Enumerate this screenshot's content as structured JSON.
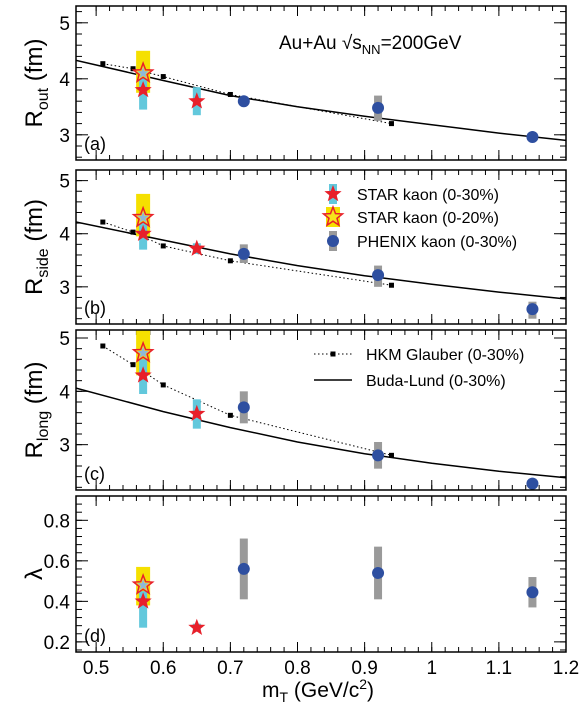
{
  "chart_data": {
    "type": "scatter",
    "x_axis": {
      "label_main": "m",
      "label_sub": "T",
      "label_unit": " (GeV/c",
      "label_sup": "2",
      "label_close": ")",
      "range": [
        0.47,
        1.2
      ],
      "ticks": [
        0.5,
        0.6,
        0.7,
        0.8,
        0.9,
        1.0,
        1.1,
        1.2
      ],
      "tick_labels": [
        "0.5",
        "0.6",
        "0.7",
        "0.8",
        "0.9",
        "1",
        "1.1",
        "1.2"
      ]
    },
    "header": {
      "system": "Au+Au",
      "energy_sqrt": "√s",
      "energy_sub": "NN",
      "energy_value": "=200GeV"
    },
    "legend_markers": [
      {
        "name": "STAR kaon (0-30%)",
        "marker": "red-star"
      },
      {
        "name": "STAR kaon (0-20%)",
        "marker": "yellow-star"
      },
      {
        "name": "PHENIX kaon (0-30%)",
        "marker": "blue-circle"
      }
    ],
    "legend_lines": [
      {
        "name": "HKM Glauber (0-30%)",
        "style": "dotted-square"
      },
      {
        "name": "Buda-Lund (0-30%)",
        "style": "solid"
      }
    ],
    "panels": [
      {
        "id": "a",
        "tag": "(a)",
        "ylabel_main": "R",
        "ylabel_sub": "out",
        "ylabel_unit": " (fm)",
        "ylim": [
          2.55,
          5.3
        ],
        "yticks": [
          3,
          4,
          5
        ],
        "star_0_30": [
          {
            "x": 0.57,
            "y": 3.8,
            "syst": [
              3.45,
              4.05
            ]
          },
          {
            "x": 0.65,
            "y": 3.6,
            "syst": [
              3.35,
              3.85
            ]
          }
        ],
        "star_0_20": [
          {
            "x": 0.57,
            "y": 4.1,
            "syst": [
              3.75,
              4.5
            ]
          }
        ],
        "phenix": [
          {
            "x": 0.72,
            "y": 3.6,
            "syst": [
              3.52,
              3.68
            ]
          },
          {
            "x": 0.92,
            "y": 3.48,
            "syst": [
              3.25,
              3.7
            ]
          },
          {
            "x": 1.15,
            "y": 2.96,
            "syst": [
              2.9,
              3.02
            ]
          }
        ],
        "hkm": {
          "x": [
            0.51,
            0.555,
            0.6,
            0.7,
            0.94
          ],
          "y": [
            4.27,
            4.18,
            4.04,
            3.72,
            3.2
          ]
        },
        "buda": {
          "x": [
            0.47,
            0.6,
            0.7,
            0.8,
            0.9,
            1.0,
            1.1,
            1.2
          ],
          "y": [
            4.33,
            3.97,
            3.7,
            3.5,
            3.33,
            3.18,
            3.03,
            2.9
          ]
        }
      },
      {
        "id": "b",
        "tag": "(b)",
        "ylabel_main": "R",
        "ylabel_sub": "side",
        "ylabel_unit": " (fm)",
        "ylim": [
          2.3,
          5.2
        ],
        "yticks": [
          3,
          4,
          5
        ],
        "star_0_30": [
          {
            "x": 0.57,
            "y": 4.0,
            "syst": [
              3.7,
              4.3
            ]
          },
          {
            "x": 0.65,
            "y": 3.72,
            "syst": [
              3.62,
              3.82
            ]
          }
        ],
        "star_0_20": [
          {
            "x": 0.57,
            "y": 4.3,
            "syst": [
              3.95,
              4.75
            ]
          }
        ],
        "phenix": [
          {
            "x": 0.72,
            "y": 3.62,
            "syst": [
              3.45,
              3.8
            ]
          },
          {
            "x": 0.92,
            "y": 3.22,
            "syst": [
              3.0,
              3.4
            ]
          },
          {
            "x": 1.15,
            "y": 2.58,
            "syst": [
              2.4,
              2.72
            ]
          }
        ],
        "hkm": {
          "x": [
            0.51,
            0.555,
            0.6,
            0.7,
            0.94
          ],
          "y": [
            4.22,
            4.03,
            3.77,
            3.49,
            3.03
          ]
        },
        "buda": {
          "x": [
            0.47,
            0.6,
            0.7,
            0.8,
            0.9,
            1.0,
            1.1,
            1.2
          ],
          "y": [
            4.22,
            3.88,
            3.62,
            3.4,
            3.21,
            3.05,
            2.9,
            2.77
          ]
        }
      },
      {
        "id": "c",
        "tag": "(c)",
        "ylabel_main": "R",
        "ylabel_sub": "long",
        "ylabel_unit": " (fm)",
        "ylim": [
          2.15,
          5.15
        ],
        "yticks": [
          3,
          4,
          5
        ],
        "star_0_30": [
          {
            "x": 0.57,
            "y": 4.3,
            "syst": [
              3.95,
              4.6
            ]
          },
          {
            "x": 0.65,
            "y": 3.58,
            "syst": [
              3.3,
              3.85
            ]
          }
        ],
        "star_0_20": [
          {
            "x": 0.57,
            "y": 4.72,
            "syst": [
              4.3,
              5.15
            ]
          }
        ],
        "phenix": [
          {
            "x": 0.72,
            "y": 3.7,
            "syst": [
              3.4,
              4.0
            ]
          },
          {
            "x": 0.92,
            "y": 2.8,
            "syst": [
              2.55,
              3.05
            ]
          },
          {
            "x": 1.15,
            "y": 2.27,
            "syst": [
              2.2,
              2.33
            ]
          }
        ],
        "hkm": {
          "x": [
            0.51,
            0.555,
            0.6,
            0.7,
            0.94
          ],
          "y": [
            4.85,
            4.5,
            4.12,
            3.55,
            2.8
          ]
        },
        "buda": {
          "x": [
            0.47,
            0.6,
            0.7,
            0.8,
            0.9,
            1.0,
            1.1,
            1.2
          ],
          "y": [
            4.06,
            3.62,
            3.32,
            3.05,
            2.83,
            2.65,
            2.5,
            2.38
          ]
        }
      },
      {
        "id": "d",
        "tag": "(d)",
        "ylabel_main": "λ",
        "ylabel_sub": "",
        "ylabel_unit": "",
        "ylim": [
          0.15,
          0.92
        ],
        "yticks": [
          0.2,
          0.4,
          0.6,
          0.8
        ],
        "star_0_30": [
          {
            "x": 0.57,
            "y": 0.4,
            "syst": [
              0.27,
              0.45
            ]
          },
          {
            "x": 0.65,
            "y": 0.27,
            "syst": [
              0.25,
              0.29
            ]
          }
        ],
        "star_0_20": [
          {
            "x": 0.57,
            "y": 0.48,
            "syst": [
              0.38,
              0.57
            ]
          }
        ],
        "phenix": [
          {
            "x": 0.72,
            "y": 0.56,
            "syst": [
              0.41,
              0.71
            ]
          },
          {
            "x": 0.92,
            "y": 0.54,
            "syst": [
              0.41,
              0.67
            ]
          },
          {
            "x": 1.15,
            "y": 0.445,
            "syst": [
              0.37,
              0.52
            ]
          }
        ]
      }
    ],
    "colors": {
      "star_red": "#e8202a",
      "star_yellow": "#f7e31b",
      "star_0_30_syst": "#62c8dc",
      "star_0_20_syst": "#f5e000",
      "phenix_blue": "#2e4fa0",
      "phenix_syst": "#9a9a9a",
      "curve": "#000000"
    }
  }
}
